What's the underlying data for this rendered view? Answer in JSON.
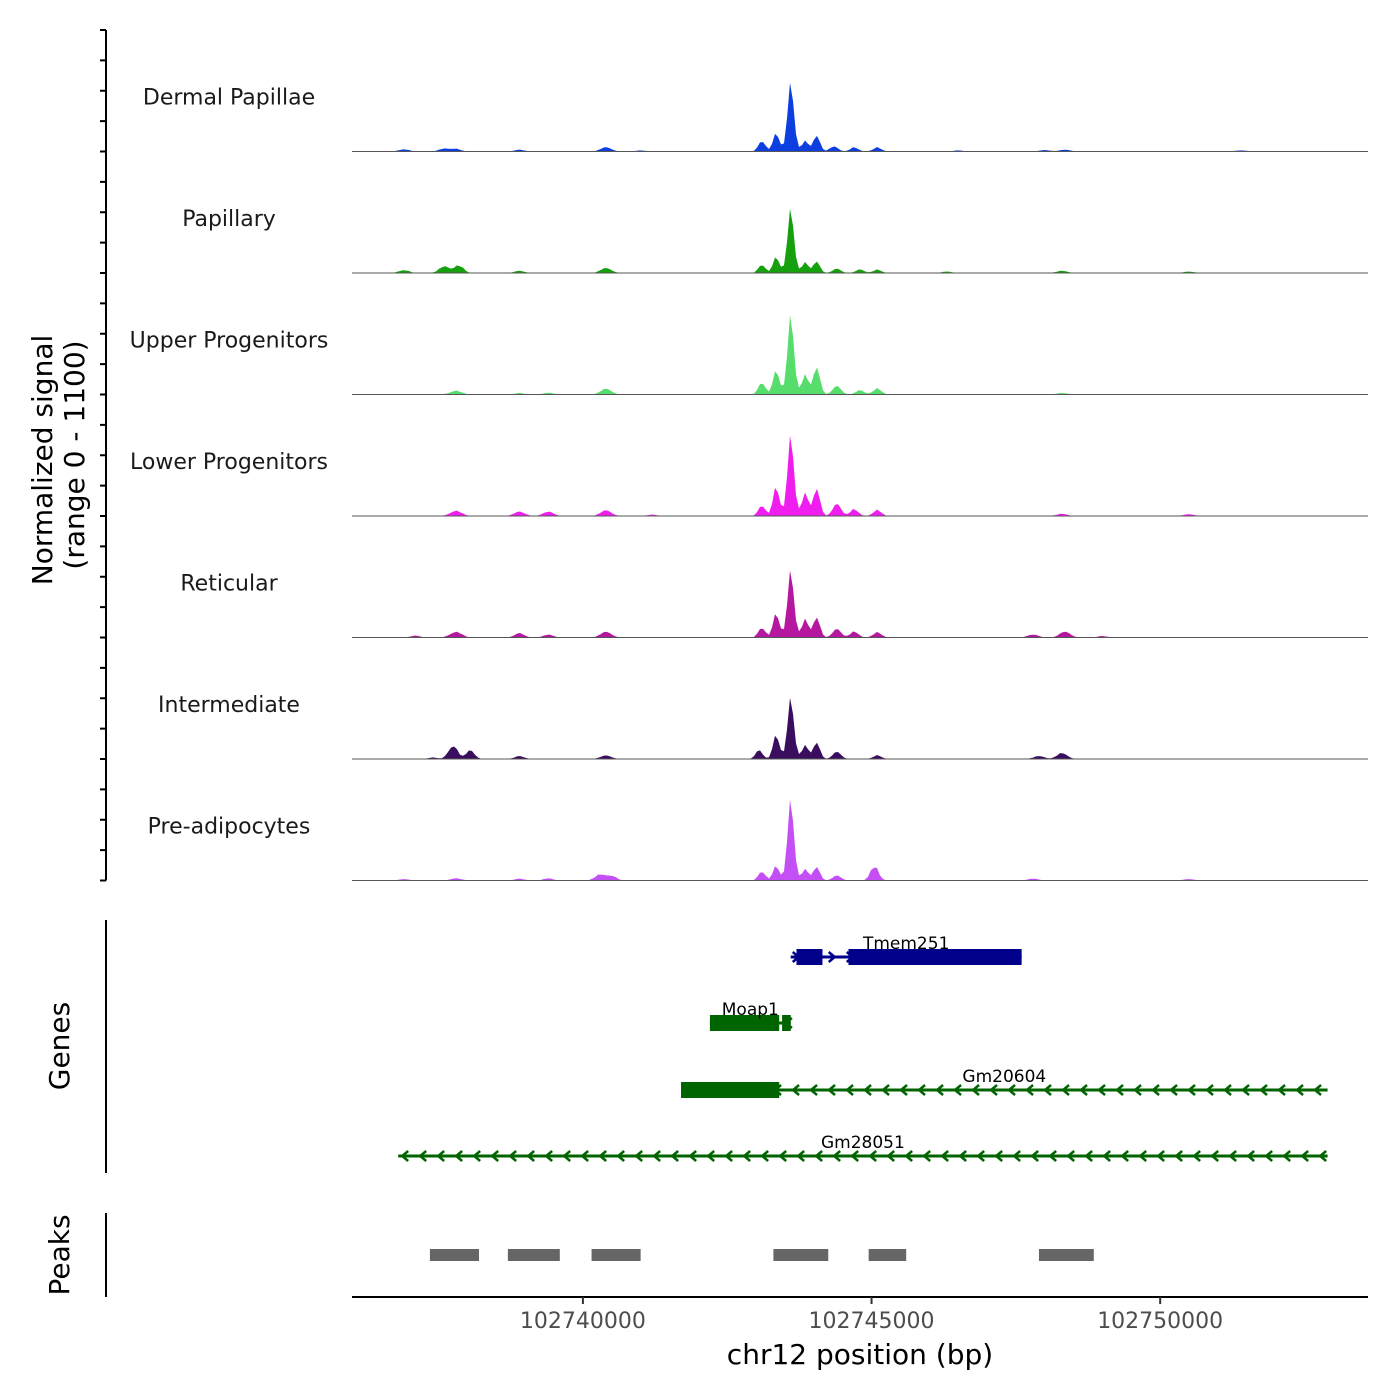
{
  "chart_data": {
    "type": "area",
    "title": "",
    "chromosome": "chr12",
    "xlabel": "chr12 position (bp)",
    "ylabel_line1": "Normalized signal",
    "ylabel_line2": "(range 0 - 1100)",
    "ylim": [
      0,
      1100
    ],
    "xlim": [
      102736000,
      102753600
    ],
    "x_ticks": [
      102740000,
      102745000,
      102750000
    ],
    "x_tick_labels": [
      "102740000",
      "102745000",
      "102750000"
    ],
    "series": [
      {
        "name": "Dermal Papillae",
        "color": "#0c3ee0",
        "peaks": [
          [
            102736900,
            30,
            90
          ],
          [
            102737600,
            40,
            90
          ],
          [
            102737800,
            35,
            80
          ],
          [
            102738900,
            25,
            80
          ],
          [
            102740400,
            60,
            90
          ],
          [
            102741000,
            15,
            80
          ],
          [
            102743100,
            140,
            60
          ],
          [
            102743350,
            250,
            55
          ],
          [
            102743600,
            920,
            55
          ],
          [
            102743850,
            140,
            60
          ],
          [
            102744050,
            220,
            55
          ],
          [
            102744350,
            70,
            70
          ],
          [
            102744700,
            55,
            70
          ],
          [
            102745100,
            55,
            70
          ],
          [
            102746500,
            15,
            80
          ],
          [
            102748000,
            20,
            90
          ],
          [
            102748350,
            25,
            90
          ],
          [
            102751400,
            15,
            90
          ]
        ]
      },
      {
        "name": "Papillary",
        "color": "#17a00e",
        "peaks": [
          [
            102736900,
            40,
            90
          ],
          [
            102737600,
            90,
            90
          ],
          [
            102737850,
            100,
            80
          ],
          [
            102738900,
            30,
            80
          ],
          [
            102740400,
            70,
            90
          ],
          [
            102743100,
            110,
            60
          ],
          [
            102743350,
            220,
            55
          ],
          [
            102743600,
            860,
            55
          ],
          [
            102743850,
            140,
            60
          ],
          [
            102744050,
            160,
            55
          ],
          [
            102744400,
            60,
            70
          ],
          [
            102744800,
            50,
            70
          ],
          [
            102745100,
            45,
            70
          ],
          [
            102746300,
            20,
            80
          ],
          [
            102748300,
            30,
            90
          ],
          [
            102750500,
            20,
            90
          ]
        ]
      },
      {
        "name": "Upper Progenitors",
        "color": "#57dd6c",
        "peaks": [
          [
            102737800,
            50,
            100
          ],
          [
            102738900,
            20,
            80
          ],
          [
            102739400,
            25,
            80
          ],
          [
            102740400,
            80,
            90
          ],
          [
            102743100,
            160,
            60
          ],
          [
            102743350,
            330,
            55
          ],
          [
            102743600,
            1060,
            55
          ],
          [
            102743850,
            260,
            60
          ],
          [
            102744050,
            380,
            55
          ],
          [
            102744400,
            120,
            70
          ],
          [
            102744800,
            60,
            70
          ],
          [
            102745100,
            80,
            70
          ],
          [
            102748300,
            20,
            90
          ]
        ]
      },
      {
        "name": "Lower Progenitors",
        "color": "#ef1eef",
        "peaks": [
          [
            102737800,
            70,
            100
          ],
          [
            102738900,
            60,
            90
          ],
          [
            102739400,
            60,
            90
          ],
          [
            102740400,
            80,
            90
          ],
          [
            102741200,
            20,
            80
          ],
          [
            102743100,
            140,
            60
          ],
          [
            102743350,
            400,
            55
          ],
          [
            102743600,
            1080,
            55
          ],
          [
            102743850,
            300,
            60
          ],
          [
            102744050,
            380,
            55
          ],
          [
            102744400,
            170,
            70
          ],
          [
            102744700,
            90,
            70
          ],
          [
            102745100,
            80,
            70
          ],
          [
            102748300,
            30,
            90
          ],
          [
            102750500,
            25,
            90
          ]
        ]
      },
      {
        "name": "Reticular",
        "color": "#b5179e",
        "peaks": [
          [
            102737100,
            25,
            80
          ],
          [
            102737800,
            75,
            100
          ],
          [
            102738900,
            60,
            80
          ],
          [
            102739400,
            40,
            80
          ],
          [
            102740400,
            80,
            90
          ],
          [
            102743100,
            130,
            60
          ],
          [
            102743350,
            330,
            55
          ],
          [
            102743600,
            900,
            55
          ],
          [
            102743850,
            240,
            60
          ],
          [
            102744050,
            280,
            55
          ],
          [
            102744400,
            120,
            70
          ],
          [
            102744700,
            80,
            70
          ],
          [
            102745100,
            70,
            70
          ],
          [
            102747800,
            40,
            90
          ],
          [
            102748350,
            80,
            90
          ],
          [
            102749000,
            20,
            80
          ]
        ]
      },
      {
        "name": "Intermediate",
        "color": "#3a0d5e",
        "peaks": [
          [
            102737400,
            20,
            80
          ],
          [
            102737750,
            180,
            80
          ],
          [
            102738050,
            120,
            70
          ],
          [
            102738900,
            40,
            80
          ],
          [
            102740400,
            50,
            90
          ],
          [
            102743050,
            120,
            60
          ],
          [
            102743350,
            330,
            55
          ],
          [
            102743600,
            820,
            55
          ],
          [
            102743850,
            180,
            60
          ],
          [
            102744050,
            230,
            55
          ],
          [
            102744400,
            100,
            70
          ],
          [
            102745100,
            50,
            70
          ],
          [
            102747900,
            40,
            90
          ],
          [
            102748300,
            80,
            90
          ]
        ]
      },
      {
        "name": "Pre-adipocytes",
        "color": "#c44ff5",
        "peaks": [
          [
            102736900,
            20,
            80
          ],
          [
            102737800,
            30,
            90
          ],
          [
            102738900,
            25,
            80
          ],
          [
            102739400,
            30,
            80
          ],
          [
            102740300,
            80,
            90
          ],
          [
            102740500,
            60,
            80
          ],
          [
            102743100,
            120,
            60
          ],
          [
            102743350,
            200,
            55
          ],
          [
            102743600,
            1080,
            55
          ],
          [
            102743850,
            150,
            60
          ],
          [
            102744050,
            190,
            55
          ],
          [
            102744400,
            70,
            70
          ],
          [
            102745050,
            190,
            70
          ],
          [
            102747800,
            25,
            90
          ],
          [
            102750500,
            20,
            90
          ]
        ]
      }
    ],
    "genes_label": "Genes",
    "genes": [
      {
        "name": "Tmem251",
        "color": "#00008b",
        "row": 0,
        "strand": "+",
        "start": 102743600,
        "end": 102747600,
        "exons": [
          [
            102743700,
            102744150
          ],
          [
            102744600,
            102747600
          ]
        ]
      },
      {
        "name": "Moap1",
        "color": "#006400",
        "row": 1,
        "strand": "-",
        "start": 102742200,
        "end": 102743600,
        "exons": [
          [
            102742200,
            102743400
          ],
          [
            102743450,
            102743600
          ]
        ]
      },
      {
        "name": "Gm20604",
        "color": "#006400",
        "row": 2,
        "strand": "-",
        "start": 102741700,
        "end": 102752900,
        "exons": [
          [
            102741700,
            102743400
          ]
        ]
      },
      {
        "name": "Gm28051",
        "color": "#006400",
        "row": 3,
        "strand": "-",
        "start": 102736800,
        "end": 102752900,
        "exons": []
      }
    ],
    "peaks_label": "Peaks",
    "peak_color": "#666666",
    "peak_regions": [
      [
        102737350,
        102738200
      ],
      [
        102738700,
        102739600
      ],
      [
        102740150,
        102741000
      ],
      [
        102743300,
        102744250
      ],
      [
        102744950,
        102745600
      ],
      [
        102747900,
        102748850
      ]
    ]
  }
}
